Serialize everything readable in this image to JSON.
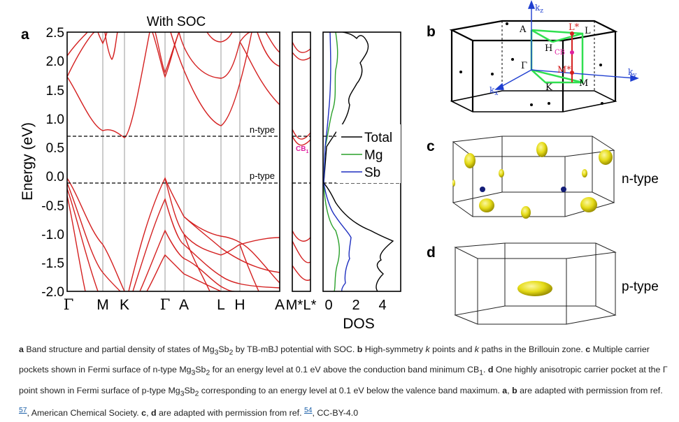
{
  "panel_a": {
    "label": "a",
    "title": "With SOC",
    "ylabel": "Energy (eV)",
    "y_ticks": [
      "2.5",
      "2.0",
      "1.5",
      "1.0",
      "0.5",
      "0.0",
      "-0.5",
      "-1.0",
      "-1.5",
      "-2.0"
    ],
    "k_labels": [
      "Γ",
      "M",
      "K",
      "Γ",
      "A",
      "L",
      "H",
      "A"
    ],
    "k_labels_small": [
      "M*",
      "L*"
    ],
    "n_type": "n-type",
    "p_type": "p-type",
    "cb1": "CB",
    "cb1_sub": "1",
    "dos_xlabel": "DOS",
    "dos_ticks": [
      "0",
      "2",
      "4"
    ],
    "legend": [
      "Total",
      "Mg",
      "Sb"
    ]
  },
  "panel_b": {
    "label": "b",
    "points": [
      "A",
      "L*",
      "L",
      "H",
      "CB",
      "M*",
      "Γ",
      "K",
      "M"
    ],
    "axes": [
      "k",
      "k",
      "k"
    ],
    "axes_sub": [
      "z",
      "y",
      "x"
    ]
  },
  "panel_c": {
    "label": "c",
    "type_label": "n-type"
  },
  "panel_d": {
    "label": "d",
    "type_label": "p-type"
  },
  "caption": {
    "a_label": "a",
    "t1": " Band structure and partial density of states of Mg",
    "s3": "3",
    "t2": "Sb",
    "s2": "2",
    "t3": " by TB-mBJ potential with SOC. ",
    "b_label": "b",
    "t4": " High-symmetry ",
    "k": "k",
    "t5": " points and ",
    "k2": "k",
    "t6": " paths in the Brillouin zone. ",
    "c_label": "c",
    "t7": " Multiple carrier pockets shown in Fermi surface of n-type Mg",
    "s3b": "3",
    "t8": "Sb",
    "s2b": "2",
    "t9": " for an energy level at 0.1 eV above the conduction band minimum CB",
    "s1": "1",
    "t10": ". ",
    "d_label": "d",
    "t11": " One highly anisotropic carrier pocket at the Γ point shown in Fermi surface of p-type Mg",
    "s3c": "3",
    "t12": "Sb",
    "s2c": "2",
    "t13": " corresponding to an energy level at 0.1 eV below the valence band maximum. ",
    "a2": "a",
    "t14": ", ",
    "b2": "b",
    "t15": " are adapted with permission from ref. ",
    "ref1": "57",
    "t16": ", American Chemical Society. ",
    "c2": "c",
    "t17": ", ",
    "d2": "d",
    "t18": " are adapted with permission from ref. ",
    "ref2": "54",
    "t19": ", CC-BY-4.0"
  },
  "colors": {
    "band": "#d42020",
    "dos_total": "#000000",
    "dos_mg": "#2aa02a",
    "dos_sb": "#1f2fc0",
    "cb": "#e020a0",
    "path": "#30e050",
    "axis_blue": "#1f3fd0",
    "pocket": "#e8e020"
  }
}
